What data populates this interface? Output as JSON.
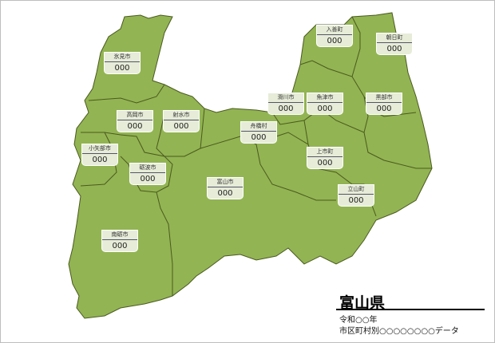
{
  "title": "富山県",
  "year": "令和○○年",
  "subtitle": "市区町村別○○○○○○○○データ",
  "colors": {
    "land": "#92b452",
    "border": "#4a5a20",
    "label_bg": "#e6ecd8"
  },
  "municipalities": [
    {
      "name": "氷見市",
      "value": "000"
    },
    {
      "name": "高岡市",
      "value": "000"
    },
    {
      "name": "射水市",
      "value": "000"
    },
    {
      "name": "舟橋村",
      "value": "000"
    },
    {
      "name": "小矢部市",
      "value": "000"
    },
    {
      "name": "砺波市",
      "value": "000"
    },
    {
      "name": "富山市",
      "value": "000"
    },
    {
      "name": "南砺市",
      "value": "000"
    },
    {
      "name": "入善町",
      "value": "000"
    },
    {
      "name": "朝日町",
      "value": "000"
    },
    {
      "name": "滑川市",
      "value": "000"
    },
    {
      "name": "魚津市",
      "value": "000"
    },
    {
      "name": "黒部市",
      "value": "000"
    },
    {
      "name": "上市町",
      "value": "000"
    },
    {
      "name": "立山町",
      "value": "000"
    }
  ]
}
